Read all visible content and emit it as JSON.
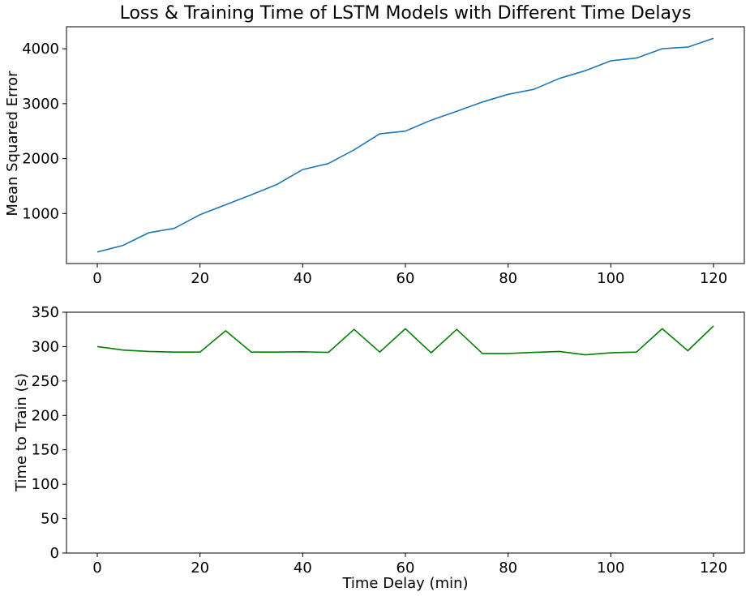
{
  "chart_data": [
    {
      "type": "line",
      "title": "Loss & Training Time of LSTM Models with Different Time Delays",
      "xlabel": "",
      "ylabel": "Mean Squared Error",
      "x": [
        0,
        5,
        10,
        15,
        20,
        25,
        30,
        35,
        40,
        45,
        50,
        55,
        60,
        65,
        70,
        75,
        80,
        85,
        90,
        95,
        100,
        105,
        110,
        115,
        120
      ],
      "series": [
        {
          "color": "#1f77b4",
          "values": [
            300,
            420,
            650,
            730,
            980,
            1160,
            1340,
            1530,
            1800,
            1910,
            2160,
            2450,
            2500,
            2700,
            2860,
            3030,
            3170,
            3260,
            3460,
            3600,
            3780,
            3830,
            4000,
            4030,
            4190
          ]
        }
      ],
      "xlim": [
        -6,
        126
      ],
      "ylim": [
        90,
        4400
      ],
      "xticks": [
        0,
        20,
        40,
        60,
        80,
        100,
        120
      ],
      "yticks": [
        1000,
        2000,
        3000,
        4000
      ],
      "grid": false
    },
    {
      "type": "line",
      "title": "",
      "xlabel": "Time Delay (min)",
      "ylabel": "Time to Train (s)",
      "x": [
        0,
        5,
        10,
        15,
        20,
        25,
        30,
        35,
        40,
        45,
        50,
        55,
        60,
        65,
        70,
        75,
        80,
        85,
        90,
        95,
        100,
        105,
        110,
        115,
        120
      ],
      "series": [
        {
          "color": "#008000",
          "values": [
            300,
            295,
            293,
            292,
            292,
            323,
            292,
            292,
            292.5,
            291.5,
            325,
            292,
            326,
            291,
            325,
            290,
            290,
            291.5,
            293,
            288,
            291,
            292,
            326,
            294,
            330
          ]
        }
      ],
      "xlim": [
        -6,
        126
      ],
      "ylim": [
        0,
        350
      ],
      "xticks": [
        0,
        20,
        40,
        60,
        80,
        100,
        120
      ],
      "yticks": [
        0,
        50,
        100,
        150,
        200,
        250,
        300,
        350
      ],
      "grid": false
    }
  ]
}
